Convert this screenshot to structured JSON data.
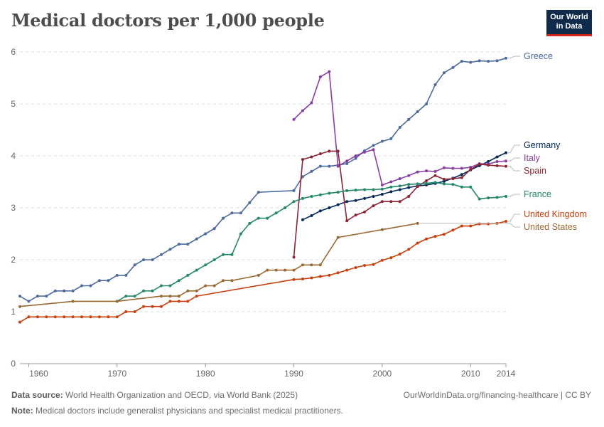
{
  "title": "Medical doctors per 1,000 people",
  "logo": {
    "line1": "Our World",
    "line2": "in Data"
  },
  "footer": {
    "source_label": "Data source:",
    "source_text": "World Health Organization and OECD, via World Bank (2025)",
    "note_label": "Note:",
    "note_text": "Medical doctors include generalist physicians and specialist medical practitioners.",
    "url_text": "OurWorldinData.org/financing-healthcare | CC BY"
  },
  "chart_data": {
    "type": "line",
    "title": "Medical doctors per 1,000 people",
    "xlim": [
      1959,
      2014
    ],
    "ylim": [
      0,
      6
    ],
    "x_ticks": [
      1960,
      1970,
      1980,
      1990,
      2000,
      2010,
      2014
    ],
    "y_ticks": [
      0,
      1,
      2,
      3,
      4,
      5,
      6
    ],
    "grid": "horizontal dashed",
    "legend": "labels at right end of lines",
    "series": [
      {
        "name": "Greece",
        "color": "#4c6a9c",
        "points": [
          [
            1959,
            1.3
          ],
          [
            1960,
            1.2
          ],
          [
            1961,
            1.3
          ],
          [
            1962,
            1.3
          ],
          [
            1963,
            1.4
          ],
          [
            1964,
            1.4
          ],
          [
            1965,
            1.4
          ],
          [
            1966,
            1.5
          ],
          [
            1967,
            1.5
          ],
          [
            1968,
            1.6
          ],
          [
            1969,
            1.6
          ],
          [
            1970,
            1.7
          ],
          [
            1971,
            1.7
          ],
          [
            1972,
            1.9
          ],
          [
            1973,
            2.0
          ],
          [
            1974,
            2.0
          ],
          [
            1975,
            2.1
          ],
          [
            1976,
            2.2
          ],
          [
            1977,
            2.3
          ],
          [
            1978,
            2.3
          ],
          [
            1979,
            2.4
          ],
          [
            1980,
            2.5
          ],
          [
            1981,
            2.6
          ],
          [
            1982,
            2.8
          ],
          [
            1983,
            2.9
          ],
          [
            1984,
            2.9
          ],
          [
            1985,
            3.1
          ],
          [
            1986,
            3.3
          ],
          [
            1990,
            3.33
          ],
          [
            1991,
            3.6
          ],
          [
            1992,
            3.7
          ],
          [
            1993,
            3.8
          ],
          [
            1994,
            3.8
          ],
          [
            1995,
            3.82
          ],
          [
            1996,
            3.85
          ],
          [
            1997,
            3.95
          ],
          [
            1998,
            4.1
          ],
          [
            1999,
            4.2
          ],
          [
            2000,
            4.28
          ],
          [
            2001,
            4.33
          ],
          [
            2002,
            4.55
          ],
          [
            2003,
            4.7
          ],
          [
            2004,
            4.85
          ],
          [
            2005,
            5.0
          ],
          [
            2006,
            5.37
          ],
          [
            2007,
            5.6
          ],
          [
            2008,
            5.7
          ],
          [
            2009,
            5.82
          ],
          [
            2010,
            5.8
          ],
          [
            2011,
            5.83
          ],
          [
            2012,
            5.82
          ],
          [
            2013,
            5.83
          ],
          [
            2014,
            5.88
          ]
        ]
      },
      {
        "name": "Germany",
        "color": "#00295b",
        "points": [
          [
            1991,
            2.77
          ],
          [
            1992,
            2.85
          ],
          [
            1993,
            2.94
          ],
          [
            1994,
            3.0
          ],
          [
            1995,
            3.06
          ],
          [
            1996,
            3.12
          ],
          [
            1997,
            3.14
          ],
          [
            1998,
            3.18
          ],
          [
            1999,
            3.22
          ],
          [
            2000,
            3.26
          ],
          [
            2001,
            3.31
          ],
          [
            2002,
            3.35
          ],
          [
            2003,
            3.39
          ],
          [
            2004,
            3.42
          ],
          [
            2005,
            3.44
          ],
          [
            2006,
            3.47
          ],
          [
            2007,
            3.51
          ],
          [
            2008,
            3.57
          ],
          [
            2009,
            3.64
          ],
          [
            2010,
            3.73
          ],
          [
            2011,
            3.81
          ],
          [
            2012,
            3.89
          ],
          [
            2013,
            3.98
          ],
          [
            2014,
            4.06
          ]
        ]
      },
      {
        "name": "Italy",
        "color": "#883ea0",
        "points": [
          [
            1990,
            4.7
          ],
          [
            1991,
            4.87
          ],
          [
            1992,
            5.02
          ],
          [
            1993,
            5.52
          ],
          [
            1994,
            5.62
          ],
          [
            1995,
            3.8
          ],
          [
            1996,
            3.9
          ],
          [
            1997,
            4.0
          ],
          [
            1998,
            4.07
          ],
          [
            1999,
            4.12
          ],
          [
            2000,
            3.44
          ],
          [
            2001,
            3.5
          ],
          [
            2002,
            3.56
          ],
          [
            2003,
            3.62
          ],
          [
            2004,
            3.69
          ],
          [
            2005,
            3.71
          ],
          [
            2006,
            3.7
          ],
          [
            2007,
            3.77
          ],
          [
            2008,
            3.76
          ],
          [
            2009,
            3.76
          ],
          [
            2010,
            3.78
          ],
          [
            2011,
            3.85
          ],
          [
            2012,
            3.84
          ],
          [
            2013,
            3.89
          ],
          [
            2014,
            3.9
          ]
        ]
      },
      {
        "name": "Spain",
        "color": "#8c2434",
        "points": [
          [
            1990,
            2.05
          ],
          [
            1991,
            3.93
          ],
          [
            1992,
            3.98
          ],
          [
            1993,
            4.04
          ],
          [
            1994,
            4.09
          ],
          [
            1995,
            4.09
          ],
          [
            1996,
            2.75
          ],
          [
            1997,
            2.86
          ],
          [
            1998,
            2.92
          ],
          [
            1999,
            3.04
          ],
          [
            2000,
            3.12
          ],
          [
            2001,
            3.12
          ],
          [
            2002,
            3.12
          ],
          [
            2003,
            3.22
          ],
          [
            2004,
            3.41
          ],
          [
            2005,
            3.52
          ],
          [
            2006,
            3.62
          ],
          [
            2007,
            3.55
          ],
          [
            2008,
            3.56
          ],
          [
            2009,
            3.58
          ],
          [
            2010,
            3.74
          ],
          [
            2011,
            3.84
          ],
          [
            2012,
            3.82
          ],
          [
            2013,
            3.81
          ],
          [
            2014,
            3.8
          ]
        ]
      },
      {
        "name": "France",
        "color": "#23876b",
        "points": [
          [
            1970,
            1.2
          ],
          [
            1971,
            1.3
          ],
          [
            1972,
            1.3
          ],
          [
            1973,
            1.4
          ],
          [
            1974,
            1.4
          ],
          [
            1975,
            1.5
          ],
          [
            1976,
            1.5
          ],
          [
            1977,
            1.6
          ],
          [
            1978,
            1.7
          ],
          [
            1979,
            1.8
          ],
          [
            1980,
            1.9
          ],
          [
            1981,
            2.0
          ],
          [
            1982,
            2.1
          ],
          [
            1983,
            2.1
          ],
          [
            1984,
            2.5
          ],
          [
            1985,
            2.7
          ],
          [
            1986,
            2.8
          ],
          [
            1987,
            2.8
          ],
          [
            1988,
            2.9
          ],
          [
            1989,
            3.0
          ],
          [
            1990,
            3.12
          ],
          [
            1991,
            3.18
          ],
          [
            1992,
            3.22
          ],
          [
            1993,
            3.25
          ],
          [
            1994,
            3.28
          ],
          [
            1995,
            3.3
          ],
          [
            1996,
            3.33
          ],
          [
            1997,
            3.34
          ],
          [
            1998,
            3.35
          ],
          [
            1999,
            3.35
          ],
          [
            2000,
            3.36
          ],
          [
            2001,
            3.4
          ],
          [
            2002,
            3.42
          ],
          [
            2003,
            3.45
          ],
          [
            2004,
            3.46
          ],
          [
            2005,
            3.47
          ],
          [
            2006,
            3.49
          ],
          [
            2007,
            3.46
          ],
          [
            2008,
            3.45
          ],
          [
            2009,
            3.4
          ],
          [
            2010,
            3.4
          ],
          [
            2011,
            3.17
          ],
          [
            2012,
            3.19
          ],
          [
            2013,
            3.2
          ],
          [
            2014,
            3.22
          ]
        ]
      },
      {
        "name": "United Kingdom",
        "color": "#c8400f",
        "points": [
          [
            1959,
            0.8
          ],
          [
            1960,
            0.9
          ],
          [
            1961,
            0.9
          ],
          [
            1962,
            0.9
          ],
          [
            1963,
            0.9
          ],
          [
            1964,
            0.9
          ],
          [
            1965,
            0.9
          ],
          [
            1966,
            0.9
          ],
          [
            1967,
            0.9
          ],
          [
            1968,
            0.9
          ],
          [
            1969,
            0.9
          ],
          [
            1970,
            0.9
          ],
          [
            1971,
            1.0
          ],
          [
            1972,
            1.0
          ],
          [
            1973,
            1.1
          ],
          [
            1974,
            1.1
          ],
          [
            1975,
            1.1
          ],
          [
            1976,
            1.2
          ],
          [
            1977,
            1.2
          ],
          [
            1978,
            1.2
          ],
          [
            1979,
            1.3
          ],
          [
            1990,
            1.62
          ],
          [
            1991,
            1.63
          ],
          [
            1992,
            1.65
          ],
          [
            1993,
            1.68
          ],
          [
            1994,
            1.7
          ],
          [
            1995,
            1.75
          ],
          [
            1996,
            1.8
          ],
          [
            1997,
            1.85
          ],
          [
            1998,
            1.89
          ],
          [
            1999,
            1.91
          ],
          [
            2000,
            1.99
          ],
          [
            2001,
            2.04
          ],
          [
            2002,
            2.11
          ],
          [
            2003,
            2.2
          ],
          [
            2004,
            2.32
          ],
          [
            2005,
            2.4
          ],
          [
            2006,
            2.45
          ],
          [
            2007,
            2.49
          ],
          [
            2008,
            2.57
          ],
          [
            2009,
            2.65
          ],
          [
            2010,
            2.65
          ],
          [
            2011,
            2.69
          ],
          [
            2012,
            2.69
          ],
          [
            2013,
            2.7
          ],
          [
            2014,
            2.74
          ]
        ]
      },
      {
        "name": "United States",
        "color": "#9a6a33",
        "points": [
          [
            1959,
            1.1
          ],
          [
            1965,
            1.2
          ],
          [
            1970,
            1.2
          ],
          [
            1975,
            1.3
          ],
          [
            1976,
            1.3
          ],
          [
            1977,
            1.3
          ],
          [
            1978,
            1.4
          ],
          [
            1979,
            1.4
          ],
          [
            1980,
            1.5
          ],
          [
            1981,
            1.5
          ],
          [
            1982,
            1.6
          ],
          [
            1983,
            1.6
          ],
          [
            1986,
            1.7
          ],
          [
            1987,
            1.8
          ],
          [
            1988,
            1.8
          ],
          [
            1989,
            1.8
          ],
          [
            1990,
            1.8
          ],
          [
            1991,
            1.9
          ],
          [
            1992,
            1.9
          ],
          [
            1993,
            1.9
          ],
          [
            1995,
            2.43
          ],
          [
            2000,
            2.58
          ],
          [
            2004,
            2.7
          ]
        ]
      }
    ]
  }
}
